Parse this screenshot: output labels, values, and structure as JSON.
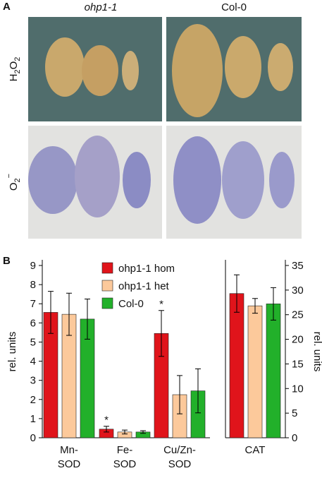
{
  "panel_a": {
    "label": "A",
    "columns": [
      "ohp1-1",
      "Col-0"
    ],
    "rows": [
      [
        "H",
        "2",
        "O",
        "2"
      ],
      [
        "O",
        "2",
        "−"
      ]
    ]
  },
  "chart_data": {
    "type": "bar",
    "panel_label": "B",
    "categories": [
      [
        "Mn-",
        "SOD"
      ],
      [
        "Fe-",
        "SOD"
      ],
      [
        "Cu/Zn-",
        "SOD"
      ],
      [
        "CAT"
      ]
    ],
    "ylabel": "rel. units",
    "y2label": "rel. units",
    "ylim": [
      0,
      9
    ],
    "yticks": [
      0,
      1,
      2,
      3,
      4,
      5,
      6,
      7,
      8,
      9
    ],
    "y2lim": [
      0,
      35
    ],
    "y2ticks": [
      0,
      5,
      10,
      15,
      20,
      25,
      30,
      35
    ],
    "series": [
      {
        "name": "ohp1-1 hom",
        "color": "#e0141b",
        "values": [
          6.55,
          0.45,
          5.45,
          null
        ],
        "errors": [
          1.1,
          0.15,
          1.2,
          null
        ],
        "significance": [
          null,
          "*",
          "*",
          null
        ]
      },
      {
        "name": "ohp1-1 het",
        "color": "#fcc99b",
        "values": [
          6.45,
          0.3,
          2.25,
          null
        ],
        "errors": [
          1.1,
          0.1,
          1.0,
          null
        ]
      },
      {
        "name": "Col-0",
        "color": "#22b02a",
        "values": [
          6.2,
          0.3,
          2.45,
          null
        ],
        "errors": [
          1.05,
          0.07,
          1.15,
          null
        ]
      },
      {
        "color": "#e0141b",
        "axis": "y2",
        "values": [
          null,
          null,
          null,
          29.3
        ],
        "errors": [
          null,
          null,
          null,
          3.8
        ]
      },
      {
        "color": "#fcc99b",
        "axis": "y2",
        "values": [
          null,
          null,
          null,
          26.8
        ],
        "errors": [
          null,
          null,
          null,
          1.5
        ]
      },
      {
        "color": "#22b02a",
        "axis": "y2",
        "values": [
          null,
          null,
          null,
          27.2
        ],
        "errors": [
          null,
          null,
          null,
          3.3
        ]
      }
    ]
  }
}
